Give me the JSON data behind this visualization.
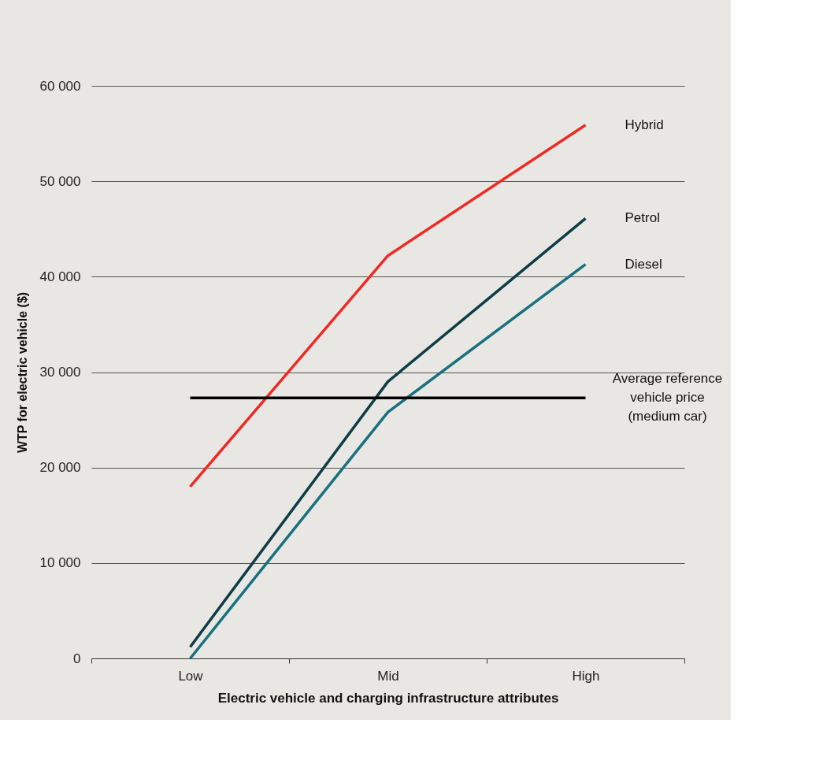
{
  "chart_data": {
    "type": "line",
    "xlabel": "Electric vehicle and charging infrastructure attributes",
    "ylabel": "WTP for electric vehicle ($)",
    "categories": [
      "Low",
      "Mid",
      "High"
    ],
    "series": [
      {
        "name": "Hybrid",
        "color": "#ee2a24",
        "values": [
          18000,
          42200,
          55900
        ]
      },
      {
        "name": "Petrol",
        "color": "#0e3d46",
        "values": [
          1200,
          29000,
          46100
        ]
      },
      {
        "name": "Diesel",
        "color": "#17717f",
        "values": [
          0,
          25800,
          41300
        ]
      }
    ],
    "ylim": [
      0,
      60000
    ],
    "yticks": [
      {
        "value": 0,
        "label": "0"
      },
      {
        "value": 10000,
        "label": "10 000"
      },
      {
        "value": 20000,
        "label": "20 000"
      },
      {
        "value": 30000,
        "label": "30 000"
      },
      {
        "value": 40000,
        "label": "40 000"
      },
      {
        "value": 50000,
        "label": "50 000"
      },
      {
        "value": 60000,
        "label": "60 000"
      }
    ],
    "ref_lines": [
      {
        "axis": "y",
        "value": 27300,
        "label": "Average reference vehicle price (medium car)",
        "color": "#000000"
      }
    ],
    "grid": "y",
    "marker": "none",
    "line_style": "solid"
  }
}
